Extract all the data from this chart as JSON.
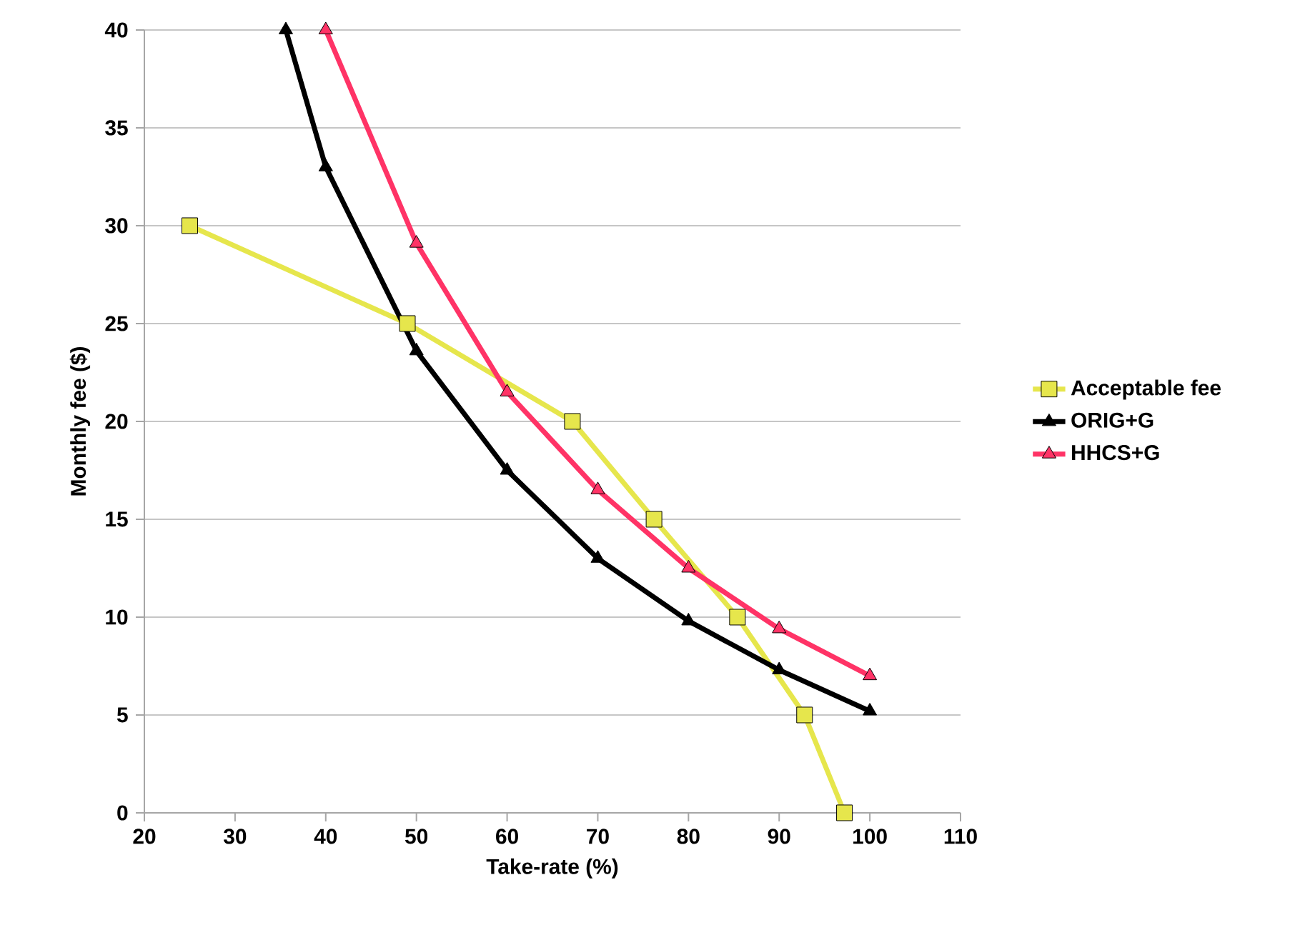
{
  "chart_data": {
    "type": "line",
    "xlabel": "Take-rate (%)",
    "ylabel": "Monthly fee ($)",
    "xlim": [
      20,
      110
    ],
    "xticks": [
      20,
      30,
      40,
      50,
      60,
      70,
      80,
      90,
      100,
      110
    ],
    "ylim": [
      0,
      40
    ],
    "yticks": [
      0,
      5,
      10,
      15,
      20,
      25,
      30,
      35,
      40
    ],
    "grid": "y",
    "legend": "right",
    "line_style": "solid",
    "series": [
      {
        "name": "Acceptable fee",
        "color": "#e6e64c",
        "marker": "square",
        "x": [
          25,
          49,
          67.2,
          76.2,
          85.4,
          92.8,
          97.2
        ],
        "values": [
          30,
          25,
          20,
          15,
          10,
          5,
          0
        ]
      },
      {
        "name": "ORIG+G",
        "color": "#000000",
        "marker": "triangle",
        "x": [
          35.6,
          40,
          50,
          60,
          70,
          80,
          90,
          100
        ],
        "values": [
          40,
          33,
          23.6,
          17.5,
          13,
          9.8,
          7.3,
          5.2
        ]
      },
      {
        "name": "HHCS+G",
        "color": "#ff3366",
        "marker": "triangle",
        "x": [
          40,
          50,
          60,
          70,
          80,
          90,
          100
        ],
        "values": [
          40,
          29.1,
          21.5,
          16.5,
          12.5,
          9.4,
          7
        ]
      }
    ]
  }
}
